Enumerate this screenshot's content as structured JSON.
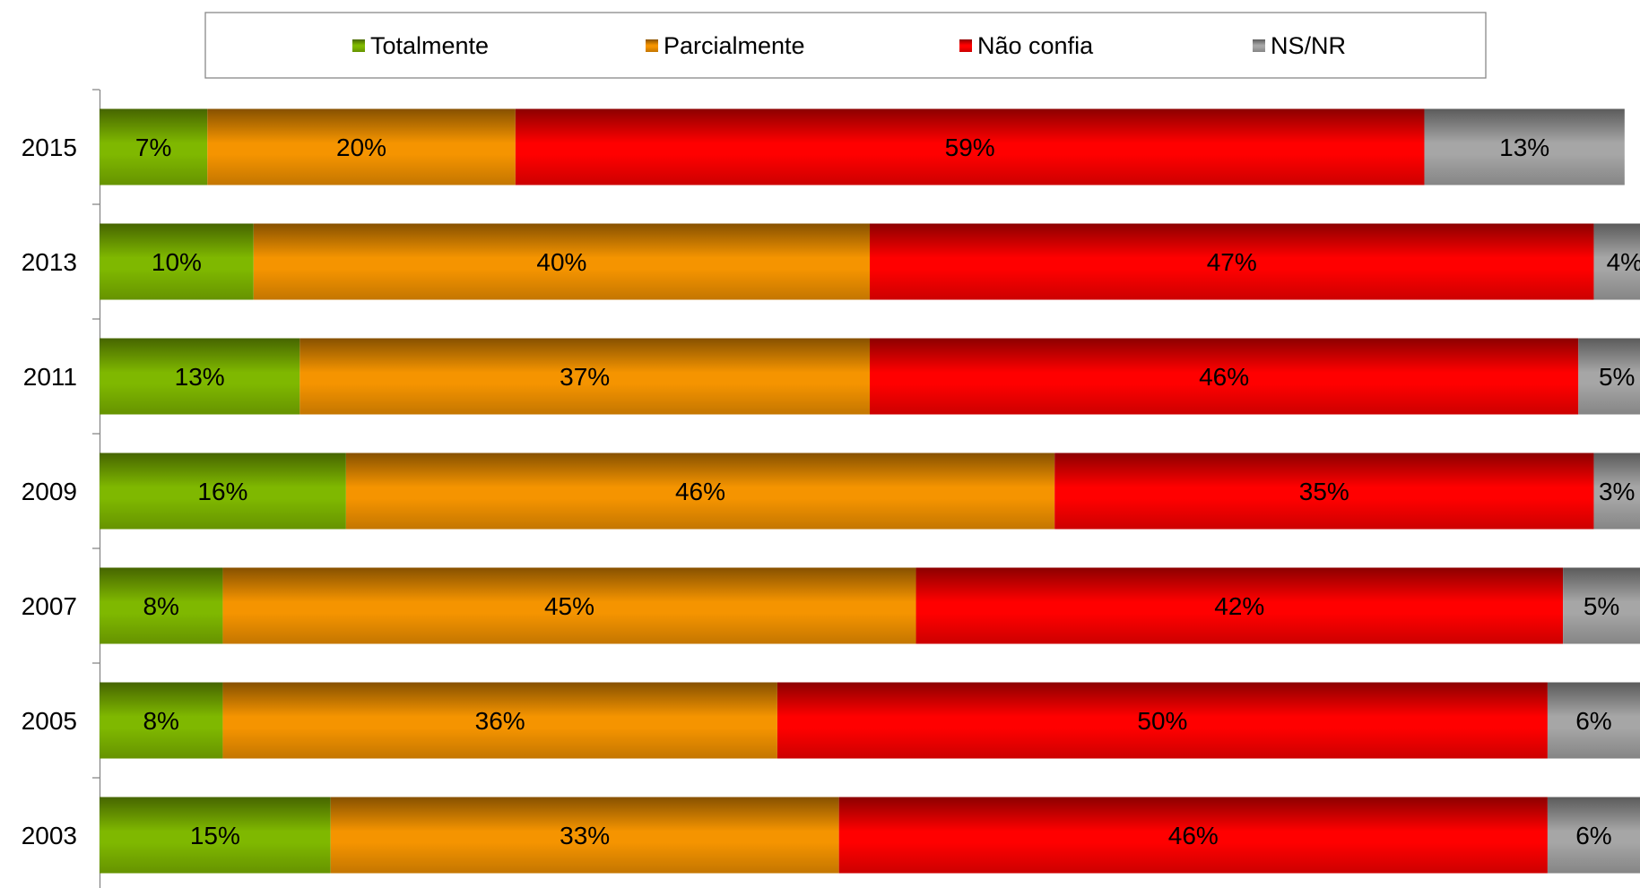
{
  "chart_data": {
    "type": "bar",
    "orientation": "horizontal",
    "stacked": true,
    "categories": [
      "2015",
      "2013",
      "2011",
      "2009",
      "2007",
      "2005",
      "2003"
    ],
    "series": [
      {
        "name": "Totalmente",
        "color": "#7fb800",
        "values": [
          7,
          10,
          13,
          16,
          8,
          8,
          15
        ],
        "labels": [
          "7%",
          "10%",
          "13%",
          "16%",
          "8%",
          "8%",
          "15%"
        ]
      },
      {
        "name": "Parcialmente",
        "color": "#f59400",
        "values": [
          20,
          40,
          37,
          46,
          45,
          36,
          33
        ],
        "labels": [
          "20%",
          "40%",
          "37%",
          "46%",
          "45%",
          "36%",
          "33%"
        ]
      },
      {
        "name": "Não confia",
        "color": "#ff0000",
        "values": [
          59,
          47,
          46,
          35,
          42,
          50,
          46
        ],
        "labels": [
          "59%",
          "47%",
          "46%",
          "35%",
          "42%",
          "50%",
          "46%"
        ]
      },
      {
        "name": "NS/NR",
        "color": "#a6a6a6",
        "values": [
          13,
          4,
          5,
          3,
          5,
          6,
          6
        ],
        "labels": [
          "13%",
          "4%",
          "5%",
          "3%",
          "5%",
          "6%",
          "6%"
        ]
      }
    ],
    "legend_position": "top",
    "grid": false,
    "xlim": [
      0,
      100
    ]
  }
}
